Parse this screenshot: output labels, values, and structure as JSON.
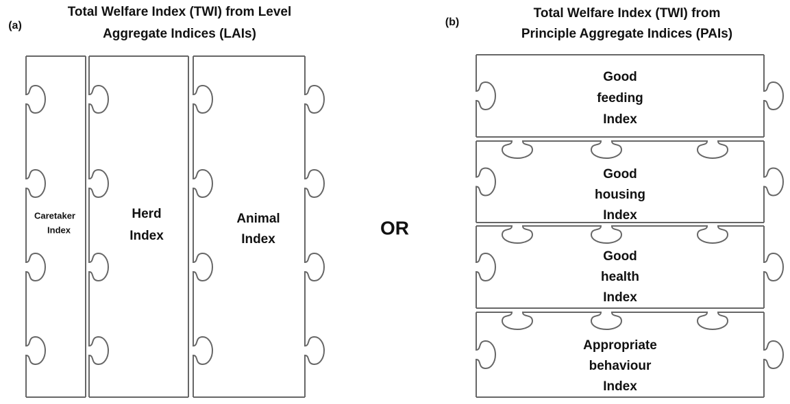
{
  "panel_a": {
    "label": "(a)",
    "title": [
      "Total Welfare Index (TWI) from Level",
      "Aggregate Indices (LAIs)"
    ],
    "pieces": [
      {
        "label": [
          "Caretaker",
          "Index"
        ]
      },
      {
        "label": [
          "Herd",
          "Index"
        ]
      },
      {
        "label": [
          "Animal",
          "Index"
        ]
      }
    ]
  },
  "separator": "OR",
  "panel_b": {
    "label": "(b)",
    "title": [
      "Total Welfare Index (TWI) from",
      "Principle Aggregate Indices (PAIs)"
    ],
    "pieces": [
      {
        "label": [
          "Good",
          "feeding",
          "Index"
        ]
      },
      {
        "label": [
          "Good",
          "housing",
          "Index"
        ]
      },
      {
        "label": [
          "Good",
          "health",
          "Index"
        ]
      },
      {
        "label": [
          "Appropriate",
          "behaviour",
          "Index"
        ]
      }
    ]
  }
}
